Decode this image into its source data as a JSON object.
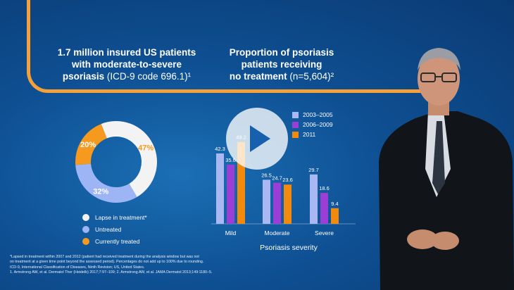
{
  "header_left": {
    "line1": "1.7 million insured US patients",
    "line2": "with moderate-to-severe",
    "line3_bold": "psoriasis",
    "line3_normal": " (ICD-9 code 696.1)¹"
  },
  "header_right": {
    "line1": "Proportion of psoriasis",
    "line2": "patients receiving",
    "line3_bold": "no treatment",
    "line3_normal": "  (n=5,604)²"
  },
  "colors": {
    "lapse": "#f3f3f3",
    "untreated": "#9db4f5",
    "treated": "#f59a1e",
    "s2003": "#a9b8f2",
    "s2006": "#9b3ed6",
    "s2011": "#f28a0e",
    "accent": "#f6a03a"
  },
  "chart_data": [
    {
      "type": "pie",
      "donut": true,
      "slices": [
        {
          "label": "Lapse in treatment*",
          "value": 47,
          "display": "47%",
          "color": "#f3f3f3"
        },
        {
          "label": "Untreated",
          "value": 32,
          "display": "32%",
          "color": "#9db4f5"
        },
        {
          "label": "Currently treated",
          "value": 20,
          "display": "20%",
          "color": "#f59a1e"
        }
      ],
      "legend_position": "bottom"
    },
    {
      "type": "bar",
      "xlabel": "Psoriasis severity",
      "categories": [
        "Mild",
        "Moderate",
        "Severe"
      ],
      "series": [
        {
          "name": "2003–2005",
          "values": [
            42.3,
            26.5,
            29.7
          ],
          "labels": [
            "42.3",
            "26.5",
            "29.7"
          ],
          "color": "#a9b8f2"
        },
        {
          "name": "2006–2009",
          "values": [
            35.6,
            24.7,
            18.6
          ],
          "labels": [
            "35.6",
            "24.7",
            "18.6"
          ],
          "color": "#9b3ed6"
        },
        {
          "name": "2011",
          "values": [
            49.2,
            23.6,
            9.4
          ],
          "labels": [
            "49.2",
            "23.6",
            "9.4"
          ],
          "color": "#f28a0e"
        }
      ],
      "ylim": [
        0,
        55
      ],
      "legend_position": "top-right"
    }
  ],
  "footnotes": [
    "*Lapsed in treatment within 2007 and 2012 (patient had received treatment during the analysis window but was not",
    "on treatment at a given time point beyond the assessed period). Percentages do not add up to 100% due to rounding.",
    "ICD-9, International Classification of Diseases, Ninth Revision; US, United States.",
    "1. Armstrong AW, et al. Dermatol Ther (Heidelb) 2017;7:97–109; 2. Armstrong AW, et al. JAMA Dermatol 2013;149:1180–5."
  ],
  "play_icon": "play-icon"
}
